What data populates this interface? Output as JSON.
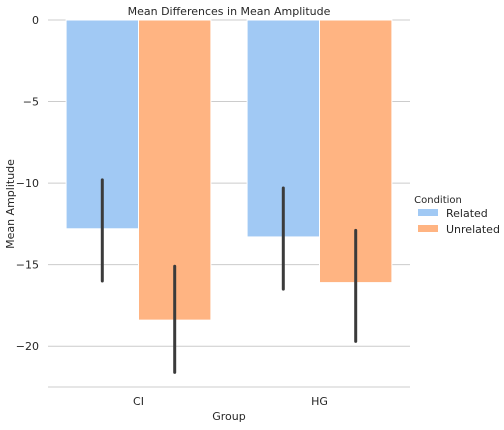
{
  "chart_data": {
    "type": "bar",
    "title": "Mean Differences in Mean Amplitude",
    "xlabel": "Group",
    "ylabel": "Mean Amplitude",
    "categories": [
      "CI",
      "HG"
    ],
    "ylim": [
      -22.5,
      0
    ],
    "yticks": [
      0,
      -5,
      -10,
      -15,
      -20
    ],
    "ytick_labels": [
      "0",
      "−5",
      "−10",
      "−15",
      "−20"
    ],
    "grid": "horizontal",
    "legend": {
      "title": "Condition",
      "placement": "right"
    },
    "series": [
      {
        "name": "Related",
        "color": "#a1c9f4",
        "values": [
          -12.8,
          -13.3
        ],
        "error_bars": [
          [
            -16.0,
            -9.8
          ],
          [
            -16.5,
            -10.3
          ]
        ]
      },
      {
        "name": "Unrelated",
        "color": "#ffb482",
        "values": [
          -18.4,
          -16.1
        ],
        "error_bars": [
          [
            -21.6,
            -15.1
          ],
          [
            -19.7,
            -12.9
          ]
        ]
      }
    ],
    "error_bar_color": "#3b3b3b"
  }
}
